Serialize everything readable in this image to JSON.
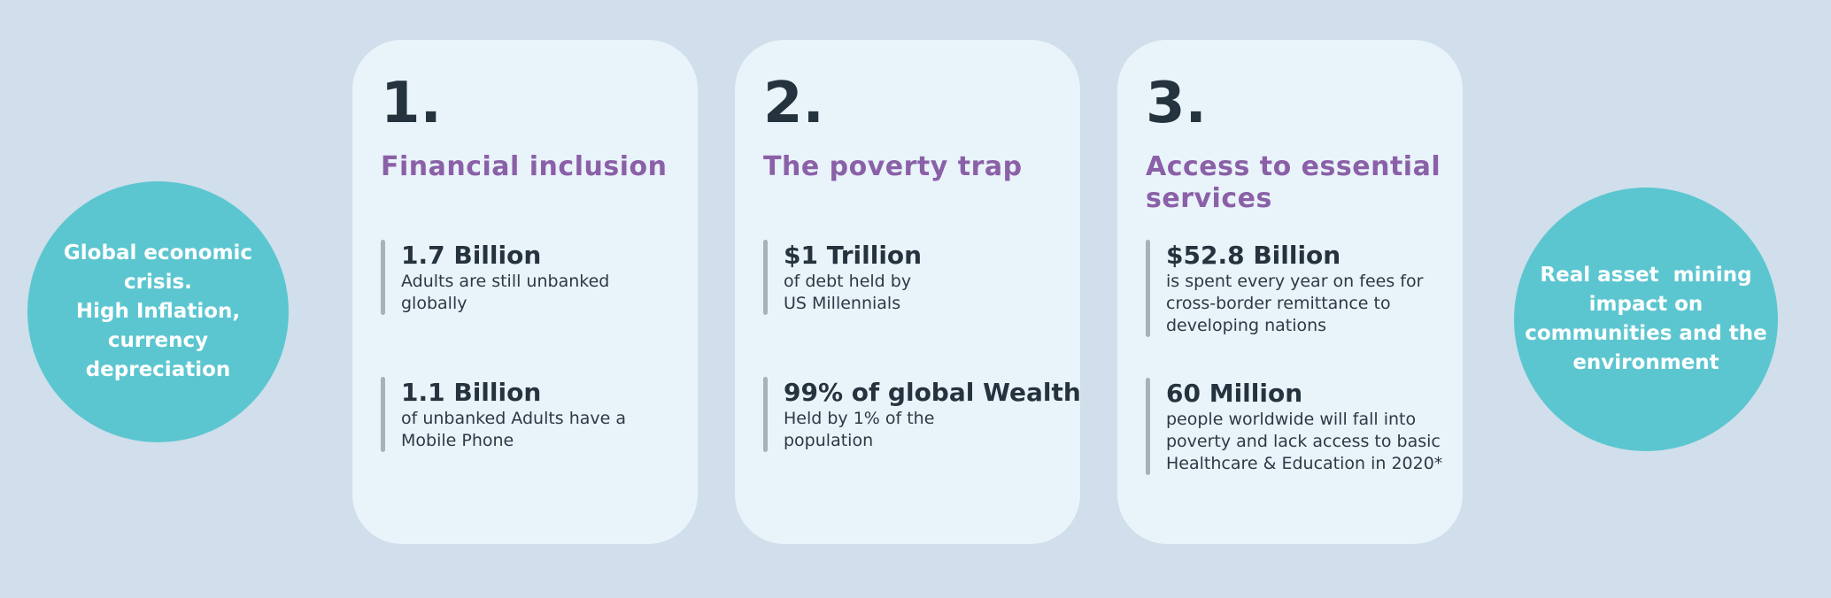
{
  "colors": {
    "background": "#D0DFEB",
    "card": "#E9F3FA",
    "circle": "#5CC6D0",
    "number": "#24333E",
    "title_purple": "#8A60A7",
    "stat_value": "#24333E",
    "stat_text": "#2B3A45",
    "accent_bar": "#A9B1B8",
    "circle_text": "#FFFFFF"
  },
  "left_circle": {
    "text": "Global economic\ncrisis.\nHigh Inflation,\ncurrency\ndepreciation"
  },
  "right_circle": {
    "text": "Real asset  mining\nimpact on\ncommunities and the\nenvironment"
  },
  "cards": [
    {
      "number": "1.",
      "title": "Financial inclusion",
      "stats": [
        {
          "value": "1.7 Billion",
          "description": "Adults are still unbanked\nglobally"
        },
        {
          "value": "1.1 Billion",
          "description": "of unbanked Adults have a\nMobile Phone"
        }
      ]
    },
    {
      "number": "2.",
      "title": "The poverty trap",
      "stats": [
        {
          "value": "$1 Trillion",
          "description": "of debt held by\nUS Millennials"
        },
        {
          "value": "99% of global Wealth",
          "description": "Held by 1% of the\npopulation"
        }
      ]
    },
    {
      "number": "3.",
      "title": "Access to essential\nservices",
      "stats": [
        {
          "value": "$52.8 Billion",
          "description": "is spent every year on fees for\ncross-border remittance to\ndeveloping nations"
        },
        {
          "value": "60 Million",
          "description": "people worldwide will fall into\npoverty and lack access to basic\nHealthcare & Education in 2020*"
        }
      ]
    }
  ]
}
